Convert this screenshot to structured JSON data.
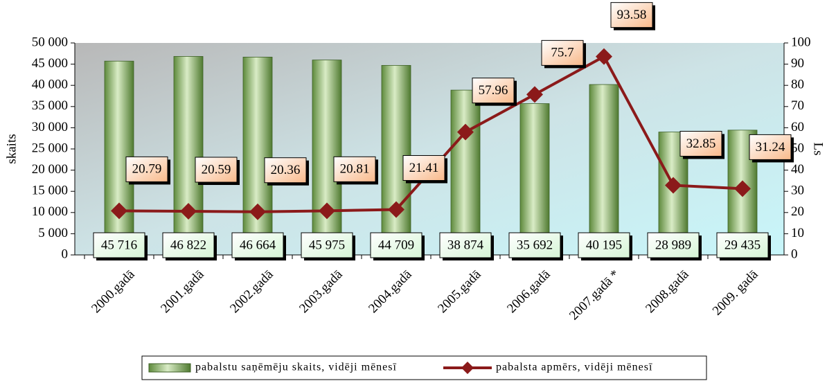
{
  "chart_data": {
    "type": "bar",
    "categories": [
      "2000.gadā",
      "2001.gadā",
      "2002.gadā",
      "2003.gadā",
      "2004.gadā",
      "2005.gadā",
      "2006.gadā",
      "2007.gadā *",
      "2008.gadā",
      "2009. gadā"
    ],
    "series": [
      {
        "name": "pabalstu saņēmēju skaits, vidēji mēnesī",
        "color": "#6f9a4a",
        "values": [
          45716,
          46822,
          46664,
          45975,
          44709,
          38874,
          35692,
          40195,
          28989,
          29435
        ],
        "value_labels": [
          "45 716",
          "46 822",
          "46 664",
          "45 975",
          "44 709",
          "38 874",
          "35 692",
          "40 195",
          "28 989",
          "29 435"
        ]
      },
      {
        "name": "pabalsta apmērs, vidēji mēnesī",
        "color": "#8b1a1a",
        "type": "line",
        "axis": "y2",
        "values": [
          20.79,
          20.59,
          20.36,
          20.81,
          21.41,
          57.96,
          75.7,
          93.58,
          32.85,
          31.24
        ]
      }
    ],
    "ylabel": "skaits",
    "y2label": "Ls",
    "ylim": [
      0,
      50000
    ],
    "yticks": [
      {
        "value": 0,
        "label": "0"
      },
      {
        "value": 5000,
        "label": "5 000"
      },
      {
        "value": 10000,
        "label": "10 000"
      },
      {
        "value": 15000,
        "label": "15 000"
      },
      {
        "value": 20000,
        "label": "20 000"
      },
      {
        "value": 25000,
        "label": "25 000"
      },
      {
        "value": 30000,
        "label": "30 000"
      },
      {
        "value": 35000,
        "label": "35 000"
      },
      {
        "value": 40000,
        "label": "40 000"
      },
      {
        "value": 45000,
        "label": "45 000"
      },
      {
        "value": 50000,
        "label": "50 000"
      }
    ],
    "y2lim": [
      0,
      100
    ],
    "y2ticks": [
      0,
      10,
      20,
      30,
      40,
      50,
      60,
      70,
      80,
      90,
      100
    ],
    "legend": "bottom"
  }
}
